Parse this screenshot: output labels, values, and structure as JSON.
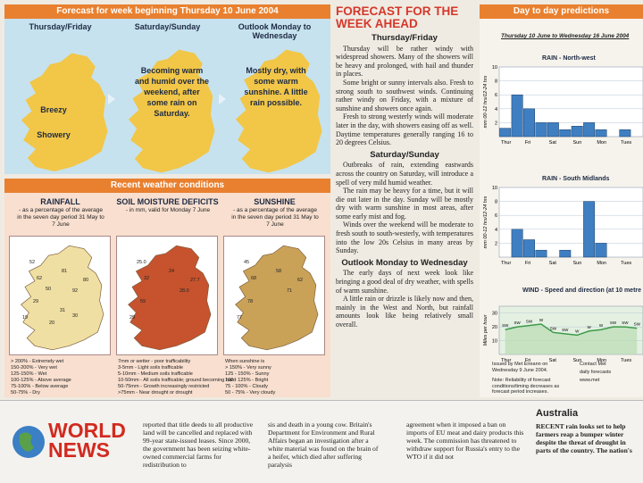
{
  "forecast": {
    "title": "Forecast for week beginning Thursday 10 June 2004",
    "columns": [
      {
        "heading": "Thursday/Friday",
        "notes": [
          "Breezy",
          "Showery"
        ]
      },
      {
        "heading": "Saturday/Sunday",
        "notes": [
          "Becoming warm and humid over the weekend, after some rain on Saturday."
        ]
      },
      {
        "heading": "Outlook Monday to Wednesday",
        "notes": [
          "Mostly dry, with some warm sunshine. A little rain possible."
        ]
      }
    ]
  },
  "recent": {
    "title": "Recent weather conditions",
    "panels": [
      {
        "heading": "RAINFALL",
        "subheading": "- as a percentage of the average in the seven day period 31 May to 7 June",
        "map_labels": [
          "52",
          "62",
          "81",
          "92",
          "80",
          "29",
          "19",
          "20",
          "31",
          "30",
          "50"
        ],
        "legend": [
          "> 200% - Extremely wet",
          "150-200% - Very wet",
          "125-150% - Wet",
          "100-125% - Above average",
          "75-100% - Below average",
          "50-75% - Dry"
        ]
      },
      {
        "heading": "SOIL MOISTURE DEFICITS",
        "subheading": "- in mm, valid for Monday 7 June",
        "map_labels": [
          "25.0",
          "32",
          "24",
          "28.0",
          "27.7",
          "59",
          "29"
        ],
        "legend": [
          "7mm or wetter - poor trafficability",
          "3-5mm - Light soils trafficable",
          "5-10mm - Medium soils trafficable",
          "10-50mm - All soils trafficable; ground becoming hard",
          "50-75mm - Growth increasingly restricted",
          ">75mm - Near drought or drought"
        ]
      },
      {
        "heading": "SUNSHINE",
        "subheading": "- as a percentage of the average in the seven day period 31 May to 7 June",
        "map_labels": [
          "45",
          "68",
          "58",
          "71",
          "62",
          "78",
          "77"
        ],
        "legend": [
          "When sunshine is",
          "> 150% - Very sunny",
          "125 - 150% - Sunny",
          "100 - 125% - Bright",
          "75 - 100% - Cloudy",
          "50 - 75% - Very cloudy"
        ]
      }
    ]
  },
  "article": {
    "title": "FORECAST FOR THE WEEK AHEAD",
    "sections": [
      {
        "heading": "Thursday/Friday",
        "paragraphs": [
          "Thursday will be rather windy with widespread showers. Many of the showers will be heavy and prolonged, with hail and thunder in places.",
          "Some bright or sunny intervals also. Fresh to strong south to southwest winds. Continuing rather windy on Friday, with a mixture of sunshine and showers once again.",
          "Fresh to strong westerly winds will moderate later in the day, with showers easing off as well. Daytime temperatures generally ranging 16 to 20 degrees Celsius."
        ]
      },
      {
        "heading": "Saturday/Sunday",
        "paragraphs": [
          "Outbreaks of rain, extending eastwards across the country on Saturday, will introduce a spell of very mild humid weather.",
          "The rain may be heavy for a time, but it will die out later in the day. Sunday will be mostly dry with warm sunshine in most areas, after some early mist and fog.",
          "Winds over the weekend will be moderate to fresh south to south-westerly, with temperatures into the low 20s Celsius in many areas by Sunday."
        ]
      },
      {
        "heading": "Outlook Monday to Wednesday",
        "paragraphs": [
          "The early days of next week look like bringing a good deal of dry weather, with spells of warm sunshine.",
          "A little rain or drizzle is likely now and then, mainly in the West and North, but rainfall amounts look like being relatively small overall."
        ]
      }
    ]
  },
  "predictions": {
    "title": "Day to day predictions",
    "subtitle": "Thursday 10 June to Wednesday 16 June 2004",
    "charts": [
      {
        "type": "bar",
        "title": "RAIN - North-west",
        "y_label": "mm 00-12 hrs/12-24 hrs",
        "categories": [
          "Thur",
          null,
          "Fri",
          null,
          "Sat",
          null,
          "Sun",
          null,
          "Mon",
          null,
          "Tues",
          null
        ],
        "values": [
          1.2,
          6,
          4,
          2,
          2,
          1,
          1.5,
          2,
          1,
          0,
          1,
          0
        ],
        "ylim": [
          0,
          10
        ],
        "yticks": [
          2,
          4,
          6,
          8,
          10
        ],
        "color": "#3f7fc1"
      },
      {
        "type": "bar",
        "title": "RAIN - South Midlands",
        "y_label": "mm 00-12 hrs/12-24 hrs",
        "categories": [
          "Thur",
          null,
          "Fri",
          null,
          "Sat",
          null,
          "Sun",
          null,
          "Mon",
          null,
          "Tues",
          null
        ],
        "values": [
          0,
          4,
          2.5,
          1,
          0,
          1,
          0,
          8,
          2,
          0,
          0,
          0
        ],
        "ylim": [
          0,
          10
        ],
        "yticks": [
          2,
          4,
          6,
          8,
          10
        ],
        "color": "#3f7fc1"
      },
      {
        "type": "line",
        "title": "WIND - Speed and direction (at 10 metre",
        "y_label": "Miles per hour",
        "categories": [
          "Thur",
          null,
          "Fri",
          null,
          "Sat",
          null,
          "Sun",
          null,
          "Mon",
          null,
          "Tues",
          null
        ],
        "values": [
          18,
          20,
          21,
          22,
          16,
          15,
          14,
          17,
          18,
          20,
          20,
          19
        ],
        "directions": [
          "SW",
          "SW",
          "SW",
          "W",
          "SW",
          "SW",
          "W",
          "W",
          "W",
          "SW",
          "SW",
          "SW"
        ],
        "ylim": [
          0,
          35
        ],
        "yticks": [
          10,
          20,
          30
        ],
        "color": "#3d9a4a"
      }
    ],
    "notes": [
      "Issued by Met Éireann on Wednesday 9 June 2004.",
      "Note: Reliability of forecast conditions/timing decreases as forecast period increases.",
      "Contact Met",
      "daily forecasts",
      "www.met"
    ]
  },
  "news": {
    "title": "WORLD NEWS",
    "columns": [
      "reported that title deeds to all productive land will be cancelled and replaced with 99-year state-issued leases. Since 2000, the government has been seizing white-owned commercial farms for redistribution to",
      "sis and death in a young cow. Britain's Department for Environment and Rural Affairs began an investigation after a white material was found on the brain of a heifer, which died after suffering paralysis",
      "agreement when it imposed a ban on imports of EU meat and dairy products this week. The commission has threatened to withdraw support for Russia's entry to the WTO if it did not"
    ],
    "aside": {
      "heading": "Australia",
      "text": "RECENT rain looks set to help farmers reap a bumper winter despite the threat of drought in parts of the country. The nation's"
    }
  }
}
